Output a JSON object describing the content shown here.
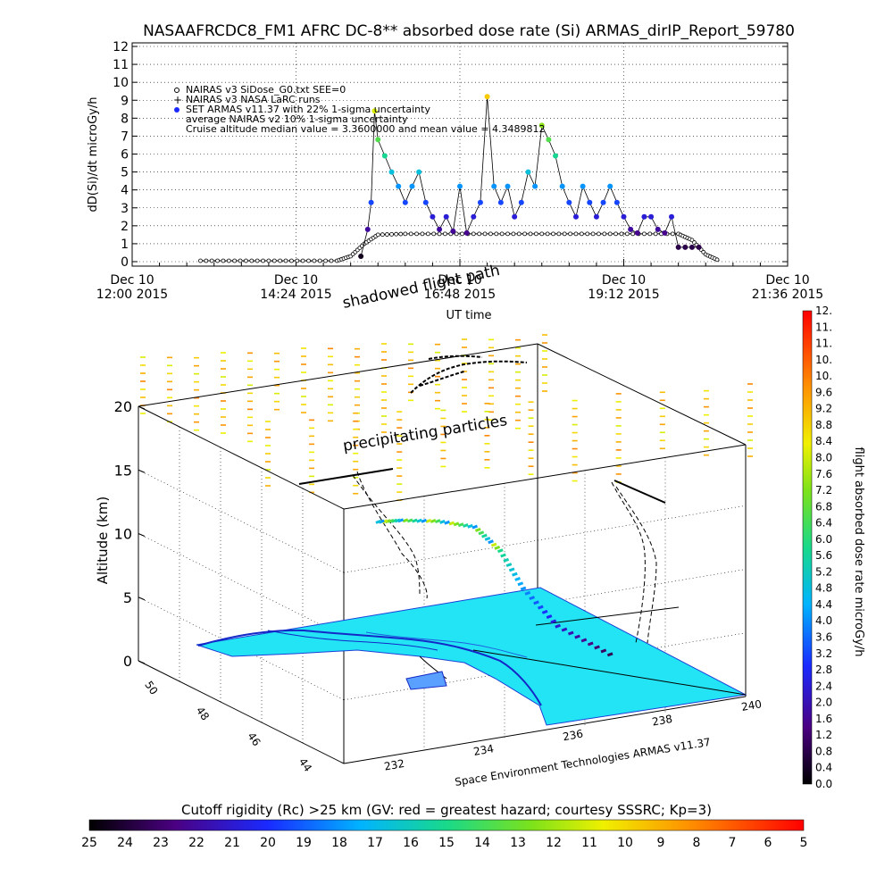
{
  "title": "NASAAFRCDC8_FM1 AFRC DC-8** absorbed dose rate (Si) ARMAS_dirIP_Report_59780",
  "chart_data": [
    {
      "type": "scatter",
      "ylabel": "dD(Si)/dt microGy/h",
      "xlabel": "UT time",
      "ylim": [
        0,
        12
      ],
      "yticks": [
        "0",
        "1",
        "2",
        "3",
        "4",
        "5",
        "6",
        "7",
        "8",
        "9",
        "10",
        "11",
        "12"
      ],
      "xticks": [
        {
          "line1": "Dec 10",
          "line2": "12:00 2015"
        },
        {
          "line1": "Dec 10",
          "line2": "14:24 2015"
        },
        {
          "line1": "Dec 10",
          "line2": "16:48 2015"
        },
        {
          "line1": "Dec 10",
          "line2": "19:12 2015"
        },
        {
          "line1": "Dec 10",
          "line2": "21:36 2015"
        }
      ],
      "xrange_hours": [
        12.0,
        21.6
      ],
      "legend": [
        "NAIRAS v3 SiDose_G0.txt SEE=0",
        "NAIRAS v3 NASA LaRC runs",
        "SET ARMAS v11.37 with 22% 1-sigma uncertainty",
        "average NAIRAS v2 10% 1-sigma uncertainty",
        "Cruise altitude median value = 3.3600000 and mean value = 4.3489812"
      ],
      "legend_placement": "top-left",
      "series": [
        {
          "style": "open-circle-line",
          "x": [
            13.0,
            13.5,
            14.0,
            14.5,
            15.0,
            15.2,
            15.4,
            15.6,
            16.0,
            16.5,
            17.0,
            17.5,
            18.0,
            18.5,
            19.0,
            19.5,
            20.0,
            20.2,
            20.4,
            20.6
          ],
          "values": [
            0.05,
            0.05,
            0.05,
            0.05,
            0.05,
            0.3,
            1.0,
            1.5,
            1.55,
            1.55,
            1.55,
            1.55,
            1.55,
            1.55,
            1.55,
            1.55,
            1.55,
            1.2,
            0.4,
            0.05
          ]
        },
        {
          "style": "colored-dots",
          "x": [
            15.35,
            15.45,
            15.5,
            15.55,
            15.6,
            15.7,
            15.8,
            15.9,
            16.0,
            16.1,
            16.2,
            16.3,
            16.4,
            16.5,
            16.6,
            16.7,
            16.8,
            16.9,
            17.0,
            17.1,
            17.2,
            17.3,
            17.4,
            17.5,
            17.6,
            17.7,
            17.8,
            17.9,
            18.0,
            18.1,
            18.2,
            18.3,
            18.4,
            18.5,
            18.6,
            18.7,
            18.8,
            18.9,
            19.0,
            19.1,
            19.2,
            19.3,
            19.4,
            19.5,
            19.6,
            19.7,
            19.8,
            19.9,
            20.0,
            20.1,
            20.2,
            20.3
          ],
          "values": [
            0.3,
            1.8,
            3.3,
            8.4,
            6.8,
            5.9,
            5.0,
            4.2,
            3.3,
            4.2,
            5.0,
            3.3,
            2.5,
            1.8,
            2.5,
            1.7,
            4.2,
            1.6,
            2.5,
            3.3,
            9.2,
            4.2,
            3.3,
            4.2,
            2.5,
            3.3,
            5.0,
            4.2,
            7.6,
            6.8,
            5.9,
            4.2,
            3.3,
            2.5,
            4.2,
            3.3,
            2.5,
            3.3,
            4.2,
            3.3,
            2.5,
            1.8,
            1.6,
            2.5,
            2.5,
            1.8,
            1.6,
            2.5,
            0.8,
            0.8,
            0.8,
            0.8
          ]
        }
      ]
    },
    {
      "type": "scatter",
      "zlabel": "Altitude (km)",
      "zticks": [
        "0",
        "5",
        "10",
        "15",
        "20"
      ],
      "lat_ticks": [
        "44",
        "46",
        "48",
        "50"
      ],
      "lon_ticks": [
        "232",
        "234",
        "236",
        "238",
        "240"
      ],
      "annotations": [
        "shadowed flight path",
        "precipitating particles"
      ],
      "credit": "Space Environment Technologies ARMAS v11.37",
      "flight_track": [
        {
          "lon": 239.0,
          "lat": 46.5,
          "alt": 0.5
        },
        {
          "lon": 238.0,
          "lat": 46.8,
          "alt": 3.0
        },
        {
          "lon": 237.4,
          "lat": 47.1,
          "alt": 6.0
        },
        {
          "lon": 237.0,
          "lat": 47.3,
          "alt": 9.0
        },
        {
          "lon": 236.6,
          "lat": 47.6,
          "alt": 10.8
        },
        {
          "lon": 236.0,
          "lat": 48.0,
          "alt": 11.2
        },
        {
          "lon": 235.4,
          "lat": 48.4,
          "alt": 11.2
        },
        {
          "lon": 235.0,
          "lat": 48.7,
          "alt": 11.0
        }
      ]
    }
  ],
  "colorbar_right": {
    "label": "flight absorbed dose rate microGy/h",
    "ticks": [
      "0.0",
      "0.4",
      "0.8",
      "1.2",
      "1.6",
      "2.0",
      "2.4",
      "2.8",
      "3.2",
      "3.6",
      "4.0",
      "4.4",
      "4.8",
      "5.2",
      "5.6",
      "6.0",
      "6.4",
      "6.8",
      "7.2",
      "7.6",
      "8.0",
      "8.4",
      "8.8",
      "9.2",
      "9.6",
      "10.",
      "10.",
      "11.",
      "11.",
      "12."
    ]
  },
  "colorbar_bottom": {
    "label": "Cutoff rigidity (Rc) >25 km (GV: red = greatest hazard; courtesy SSSRC; Kp=3)",
    "ticks": [
      "25",
      "24",
      "23",
      "22",
      "21",
      "20",
      "19",
      "18",
      "17",
      "16",
      "15",
      "14",
      "13",
      "12",
      "11",
      "10",
      "9",
      "8",
      "7",
      "6",
      "5"
    ]
  }
}
